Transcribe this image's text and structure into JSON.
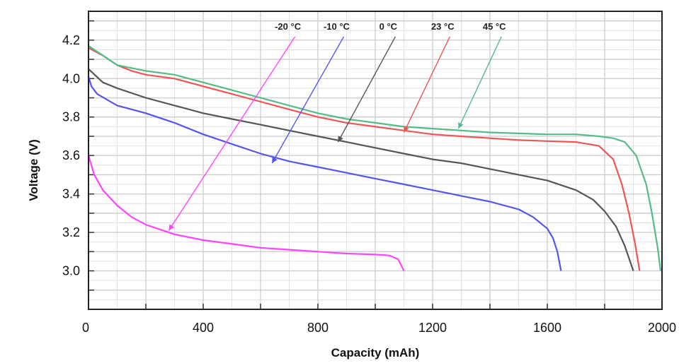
{
  "chart_data": {
    "type": "line",
    "title": "",
    "xlabel": "Capacity (mAh)",
    "ylabel": "Voltage (V)",
    "xlim": [
      0,
      2000
    ],
    "ylim": [
      2.8,
      4.35
    ],
    "x_ticks": [
      0,
      400,
      800,
      1200,
      1600,
      2000
    ],
    "x_tick_labels": [
      "0",
      "400",
      "800",
      "1200",
      "1600",
      "2000"
    ],
    "y_ticks": [
      3.0,
      3.2,
      3.4,
      3.6,
      3.8,
      4.0,
      4.2
    ],
    "y_tick_labels": [
      "3.0",
      "3.2",
      "3.4",
      "3.6",
      "3.8",
      "4.0",
      "4.2"
    ],
    "grid": true,
    "series": [
      {
        "name": "-20 °C",
        "color": "#ff44ff",
        "label_anchor": [
          720,
          4.24
        ],
        "arrow_target": [
          280,
          3.21
        ],
        "points": [
          [
            0,
            3.6
          ],
          [
            20,
            3.5
          ],
          [
            50,
            3.42
          ],
          [
            100,
            3.34
          ],
          [
            150,
            3.28
          ],
          [
            200,
            3.24
          ],
          [
            300,
            3.19
          ],
          [
            400,
            3.16
          ],
          [
            500,
            3.14
          ],
          [
            600,
            3.12
          ],
          [
            700,
            3.11
          ],
          [
            800,
            3.1
          ],
          [
            900,
            3.09
          ],
          [
            1000,
            3.085
          ],
          [
            1050,
            3.08
          ],
          [
            1080,
            3.06
          ],
          [
            1100,
            3.0
          ]
        ]
      },
      {
        "name": "-10 °C",
        "color": "#5555ee",
        "label_anchor": [
          890,
          4.24
        ],
        "arrow_target": [
          640,
          3.56
        ],
        "points": [
          [
            0,
            4.01
          ],
          [
            10,
            3.96
          ],
          [
            30,
            3.92
          ],
          [
            100,
            3.86
          ],
          [
            200,
            3.82
          ],
          [
            300,
            3.77
          ],
          [
            400,
            3.71
          ],
          [
            500,
            3.66
          ],
          [
            600,
            3.61
          ],
          [
            700,
            3.57
          ],
          [
            800,
            3.54
          ],
          [
            900,
            3.51
          ],
          [
            1000,
            3.48
          ],
          [
            1100,
            3.45
          ],
          [
            1200,
            3.42
          ],
          [
            1300,
            3.39
          ],
          [
            1400,
            3.36
          ],
          [
            1500,
            3.32
          ],
          [
            1550,
            3.28
          ],
          [
            1600,
            3.22
          ],
          [
            1620,
            3.17
          ],
          [
            1635,
            3.1
          ],
          [
            1648,
            3.0
          ]
        ]
      },
      {
        "name": "0 °C",
        "color": "#555555",
        "label_anchor": [
          1070,
          4.24
        ],
        "arrow_target": [
          870,
          3.67
        ],
        "points": [
          [
            0,
            4.05
          ],
          [
            50,
            3.98
          ],
          [
            100,
            3.95
          ],
          [
            200,
            3.9
          ],
          [
            300,
            3.86
          ],
          [
            400,
            3.82
          ],
          [
            500,
            3.79
          ],
          [
            600,
            3.76
          ],
          [
            700,
            3.73
          ],
          [
            800,
            3.7
          ],
          [
            900,
            3.67
          ],
          [
            1000,
            3.64
          ],
          [
            1100,
            3.61
          ],
          [
            1200,
            3.58
          ],
          [
            1300,
            3.56
          ],
          [
            1400,
            3.53
          ],
          [
            1500,
            3.5
          ],
          [
            1600,
            3.47
          ],
          [
            1700,
            3.42
          ],
          [
            1760,
            3.37
          ],
          [
            1800,
            3.31
          ],
          [
            1840,
            3.23
          ],
          [
            1870,
            3.13
          ],
          [
            1900,
            3.0
          ]
        ]
      },
      {
        "name": "23 °C",
        "color": "#ee5555",
        "label_anchor": [
          1260,
          4.24
        ],
        "arrow_target": [
          1100,
          3.72
        ],
        "points": [
          [
            0,
            4.16
          ],
          [
            50,
            4.12
          ],
          [
            100,
            4.07
          ],
          [
            150,
            4.04
          ],
          [
            200,
            4.02
          ],
          [
            300,
            4.0
          ],
          [
            400,
            3.96
          ],
          [
            500,
            3.92
          ],
          [
            600,
            3.88
          ],
          [
            700,
            3.84
          ],
          [
            800,
            3.8
          ],
          [
            900,
            3.77
          ],
          [
            1000,
            3.75
          ],
          [
            1100,
            3.73
          ],
          [
            1200,
            3.71
          ],
          [
            1300,
            3.7
          ],
          [
            1400,
            3.69
          ],
          [
            1500,
            3.68
          ],
          [
            1600,
            3.675
          ],
          [
            1700,
            3.67
          ],
          [
            1780,
            3.65
          ],
          [
            1830,
            3.58
          ],
          [
            1860,
            3.45
          ],
          [
            1885,
            3.3
          ],
          [
            1905,
            3.15
          ],
          [
            1922,
            3.0
          ]
        ]
      },
      {
        "name": "45 °C",
        "color": "#55bb88",
        "label_anchor": [
          1440,
          4.24
        ],
        "arrow_target": [
          1290,
          3.74
        ],
        "points": [
          [
            0,
            4.17
          ],
          [
            50,
            4.12
          ],
          [
            100,
            4.07
          ],
          [
            200,
            4.04
          ],
          [
            300,
            4.02
          ],
          [
            400,
            3.98
          ],
          [
            500,
            3.94
          ],
          [
            600,
            3.9
          ],
          [
            700,
            3.86
          ],
          [
            800,
            3.82
          ],
          [
            900,
            3.79
          ],
          [
            1000,
            3.77
          ],
          [
            1100,
            3.75
          ],
          [
            1200,
            3.74
          ],
          [
            1300,
            3.73
          ],
          [
            1400,
            3.72
          ],
          [
            1500,
            3.715
          ],
          [
            1600,
            3.71
          ],
          [
            1700,
            3.71
          ],
          [
            1780,
            3.7
          ],
          [
            1830,
            3.69
          ],
          [
            1870,
            3.67
          ],
          [
            1910,
            3.6
          ],
          [
            1945,
            3.45
          ],
          [
            1965,
            3.3
          ],
          [
            1985,
            3.12
          ],
          [
            1995,
            3.0
          ]
        ]
      }
    ]
  }
}
